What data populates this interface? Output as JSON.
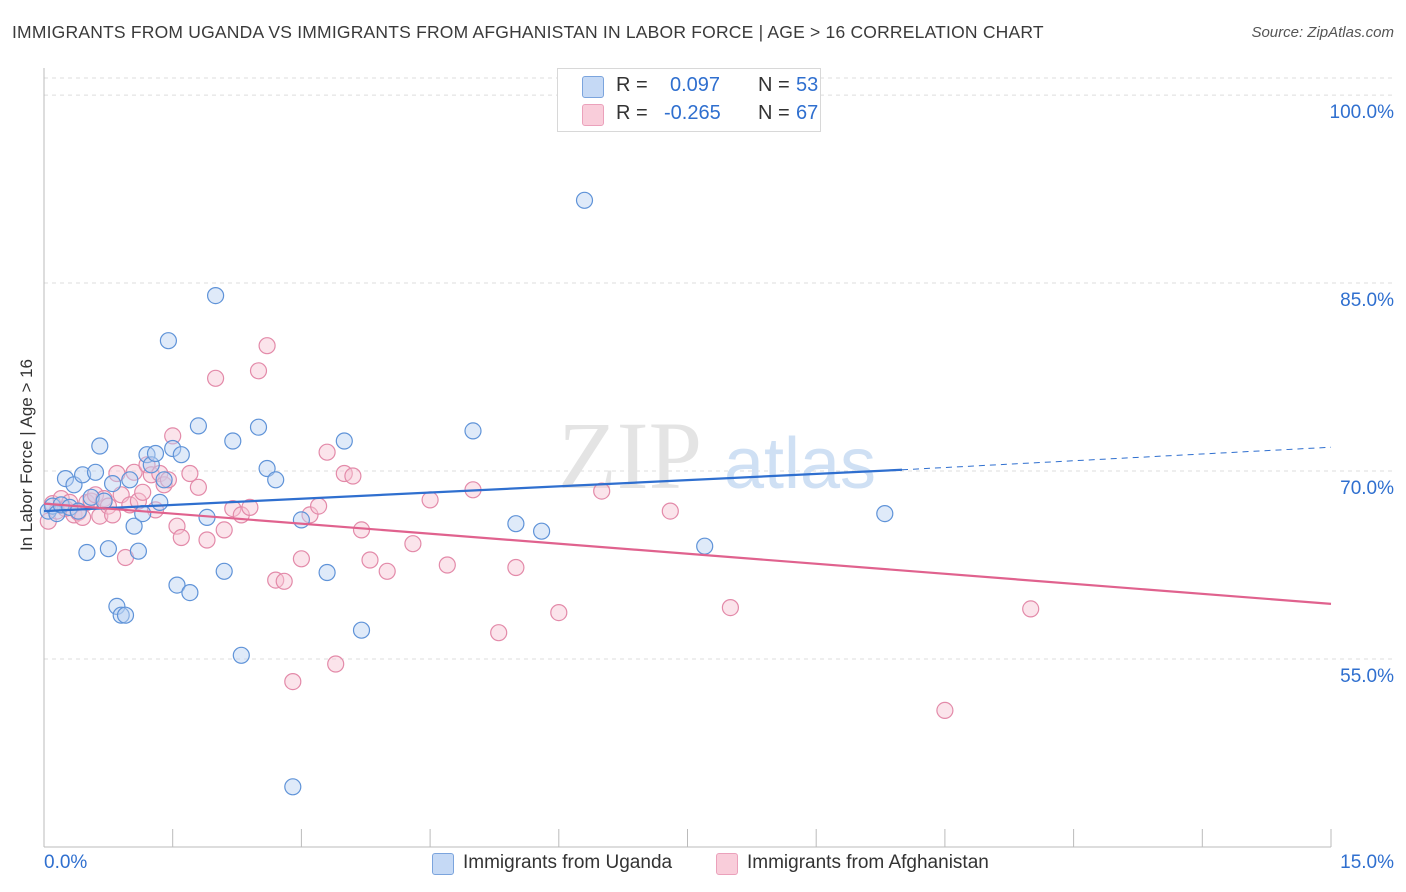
{
  "title": "IMMIGRANTS FROM UGANDA VS IMMIGRANTS FROM AFGHANISTAN IN LABOR FORCE | AGE > 16 CORRELATION CHART",
  "source": "Source: ZipAtlas.com",
  "watermark": {
    "zip": "ZIP",
    "atlas": "atlas"
  },
  "legend": {
    "uganda": {
      "r_label": "R =",
      "r_value": "0.097",
      "n_label": "N =",
      "n_value": "53"
    },
    "afghanistan": {
      "r_label": "R =",
      "r_value": "-0.265",
      "n_label": "N =",
      "n_value": "67"
    }
  },
  "colors": {
    "uganda_fill": "#b9d0f2",
    "uganda_stroke": "#5f93d8",
    "uganda_line": "#2f6fcf",
    "afghanistan_fill": "#f7c3d3",
    "afghanistan_stroke": "#e38aa9",
    "afghanistan_line": "#e0628e",
    "axis_text": "#2f6fcf",
    "grid": "#dddddd"
  },
  "chart_data": {
    "type": "scatter",
    "title": "IMMIGRANTS FROM UGANDA VS IMMIGRANTS FROM AFGHANISTAN IN LABOR FORCE | AGE > 16 CORRELATION CHART",
    "xlabel": "",
    "ylabel": "In Labor Force | Age > 16",
    "xlim": [
      0,
      15
    ],
    "ylim": [
      40,
      102
    ],
    "x_tick_labels": [
      "0.0%",
      "15.0%"
    ],
    "y_ticks": [
      55,
      70,
      85,
      100
    ],
    "y_tick_labels": [
      "55.0%",
      "70.0%",
      "85.0%",
      "100.0%"
    ],
    "grid": true,
    "legend_position": "top-center and bottom",
    "series": [
      {
        "name": "Immigrants from Uganda",
        "x": [
          0.05,
          0.1,
          0.15,
          0.2,
          0.25,
          0.3,
          0.35,
          0.4,
          0.45,
          0.5,
          0.55,
          0.6,
          0.65,
          0.7,
          0.75,
          0.8,
          0.85,
          0.9,
          0.95,
          1.0,
          1.05,
          1.1,
          1.15,
          1.2,
          1.25,
          1.3,
          1.35,
          1.4,
          1.45,
          1.5,
          1.55,
          1.6,
          1.7,
          1.8,
          1.9,
          2.0,
          2.1,
          2.2,
          2.3,
          2.5,
          2.6,
          2.7,
          2.9,
          3.0,
          3.3,
          3.5,
          3.7,
          5.0,
          5.5,
          5.8,
          6.3,
          7.7,
          9.8
        ],
        "y": [
          66.8,
          67.2,
          66.6,
          67.3,
          69.4,
          67.1,
          68.9,
          66.8,
          69.7,
          63.5,
          67.9,
          69.9,
          72.0,
          67.6,
          63.8,
          69.0,
          59.2,
          58.5,
          58.5,
          69.3,
          65.6,
          63.6,
          66.6,
          71.3,
          70.5,
          71.4,
          67.5,
          69.3,
          80.4,
          71.8,
          60.9,
          71.3,
          60.3,
          73.6,
          66.3,
          84.0,
          62.0,
          72.4,
          55.3,
          73.5,
          70.2,
          69.3,
          44.8,
          66.1,
          61.9,
          72.4,
          57.3,
          73.2,
          65.8,
          65.2,
          91.6,
          64.0,
          66.6
        ],
        "trend_solid": [
          [
            0.0,
            66.8
          ],
          [
            10.0,
            70.1
          ]
        ],
        "trend_dashed": [
          [
            10.0,
            70.1
          ],
          [
            15.0,
            71.9
          ]
        ]
      },
      {
        "name": "Immigrants from Afghanistan",
        "x": [
          0.05,
          0.1,
          0.15,
          0.2,
          0.25,
          0.3,
          0.35,
          0.4,
          0.45,
          0.5,
          0.55,
          0.6,
          0.65,
          0.7,
          0.75,
          0.8,
          0.85,
          0.9,
          0.95,
          1.0,
          1.05,
          1.1,
          1.15,
          1.2,
          1.25,
          1.3,
          1.35,
          1.4,
          1.45,
          1.5,
          1.55,
          1.6,
          1.7,
          1.8,
          1.9,
          2.0,
          2.1,
          2.2,
          2.3,
          2.4,
          2.5,
          2.6,
          2.7,
          2.8,
          2.9,
          3.0,
          3.1,
          3.2,
          3.3,
          3.4,
          3.5,
          3.6,
          3.7,
          3.8,
          4.0,
          4.3,
          4.5,
          4.7,
          5.0,
          5.3,
          5.5,
          6.0,
          6.5,
          7.3,
          8.0,
          10.5,
          11.5
        ],
        "y": [
          66.0,
          67.4,
          66.8,
          67.8,
          67.0,
          67.5,
          66.5,
          66.7,
          66.3,
          67.5,
          67.6,
          68.1,
          66.4,
          67.8,
          67.2,
          66.5,
          69.8,
          68.1,
          63.1,
          67.3,
          69.9,
          67.6,
          68.3,
          70.5,
          69.7,
          66.9,
          69.8,
          68.9,
          69.3,
          72.8,
          65.6,
          64.7,
          69.8,
          68.7,
          64.5,
          77.4,
          65.3,
          67.0,
          66.5,
          67.1,
          78.0,
          80.0,
          61.3,
          61.2,
          53.2,
          63.0,
          66.5,
          67.2,
          71.5,
          54.6,
          69.8,
          69.6,
          65.3,
          62.9,
          62.0,
          64.2,
          67.7,
          62.5,
          68.5,
          57.1,
          62.3,
          58.7,
          68.4,
          66.8,
          59.1,
          50.9,
          59.0
        ],
        "trend_solid": [
          [
            0.0,
            67.4
          ],
          [
            15.0,
            59.4
          ]
        ]
      }
    ]
  }
}
